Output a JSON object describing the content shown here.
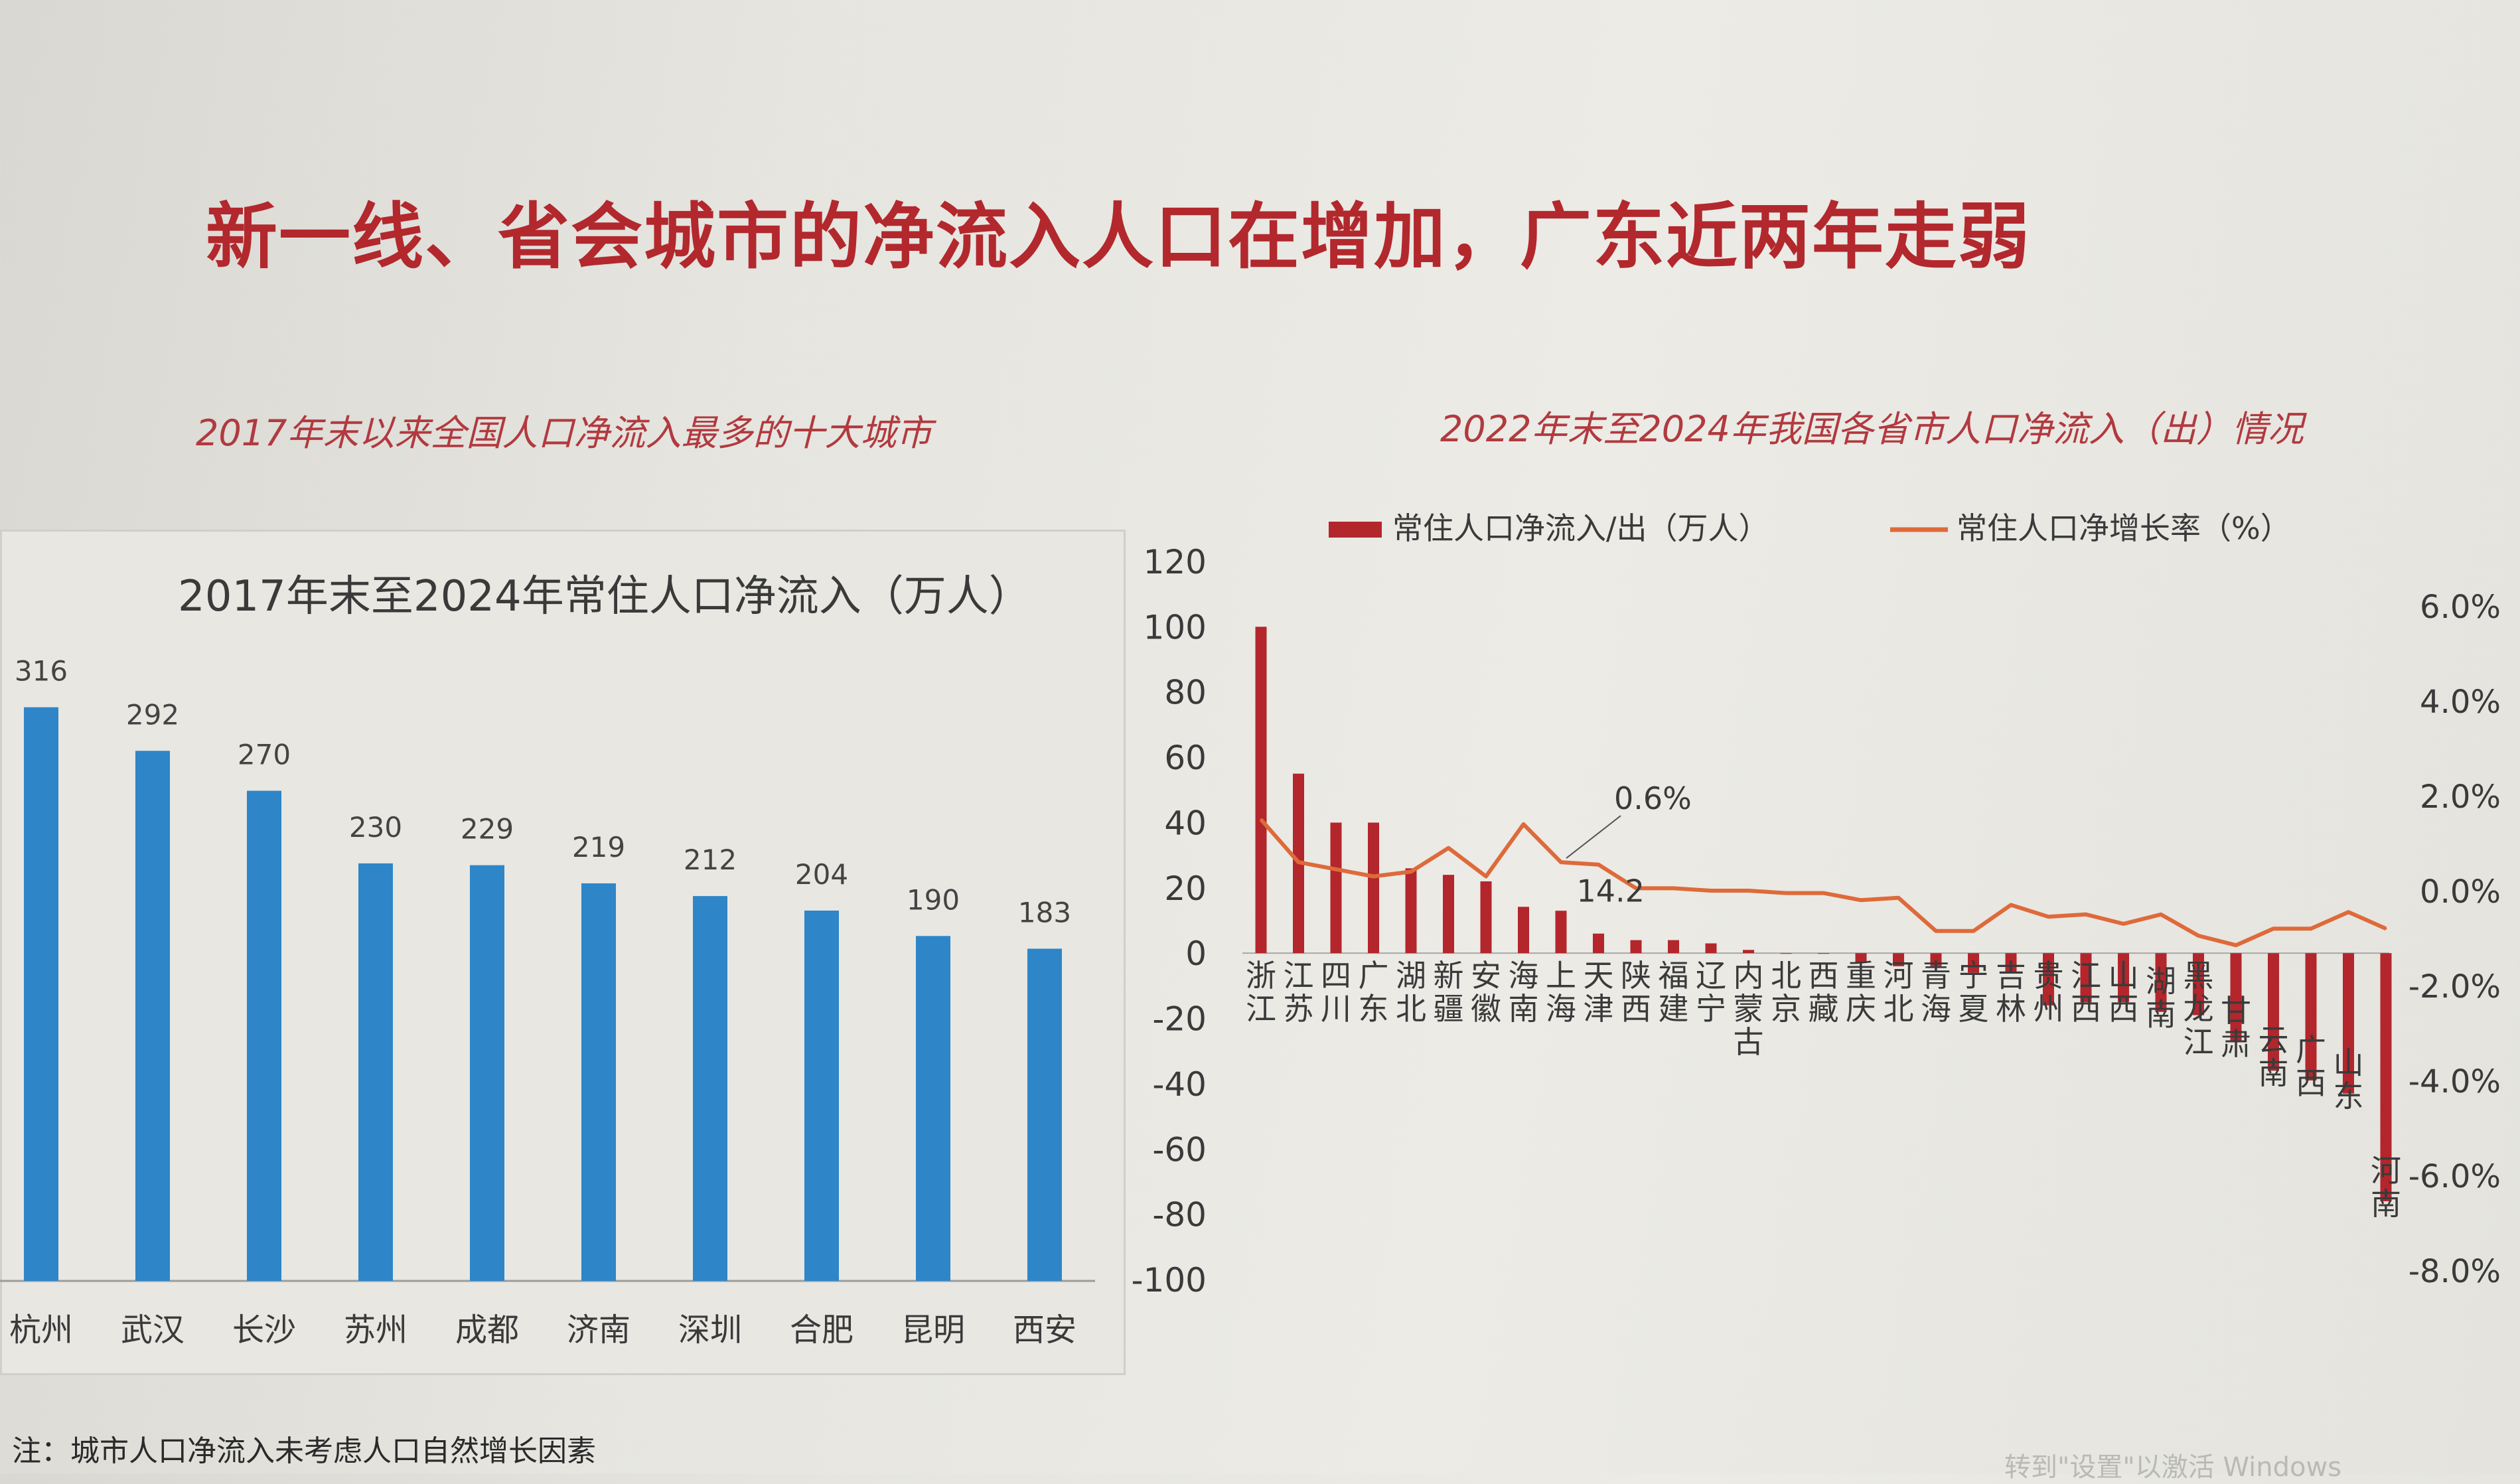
{
  "page": {
    "title": "新一线、省会城市的净流入人口在增加，广东近两年走弱",
    "left_subtitle": "2017年末以来全国人口净流入最多的十大城市",
    "right_subtitle": "2022年末至2024年我国各省市人口净流入（出）情况",
    "note": "注：城市人口净流入未考虑人口自然增长因素",
    "watermark": "转到\"设置\"以激活 Windows"
  },
  "colors": {
    "title_red": "#b2282d",
    "bar_blue": "#2e86c8",
    "bar_red": "#b3262c",
    "line_orange": "#de6a3a"
  },
  "chart_data": [
    {
      "type": "bar",
      "title": "2017年末至2024年常住人口净流入（万人）",
      "categories": [
        "杭州",
        "武汉",
        "长沙",
        "苏州",
        "成都",
        "济南",
        "深圳",
        "合肥",
        "昆明",
        "西安"
      ],
      "values": [
        316,
        292,
        270,
        230,
        229,
        219,
        212,
        204,
        190,
        183
      ],
      "data_labels": true,
      "xlabel": "",
      "ylabel": "",
      "ylim": [
        0,
        340
      ],
      "grid": false
    },
    {
      "type": "bar+line",
      "title": "",
      "categories": [
        "浙江",
        "江苏",
        "四川",
        "广东",
        "湖北",
        "新疆",
        "安徽",
        "海南",
        "上海",
        "天津",
        "陕西",
        "福建",
        "辽宁",
        "内蒙古",
        "北京",
        "西藏",
        "重庆",
        "河北",
        "青海",
        "宁夏",
        "吉林",
        "贵州",
        "江西",
        "山西",
        "湖南",
        "黑龙江",
        "甘肃",
        "云南",
        "广西",
        "山东",
        "河南"
      ],
      "category_labels": [
        "浙江",
        "江苏",
        "四川",
        "广东",
        "湖北",
        "新疆",
        "安徽",
        "海南",
        "上海",
        "天津",
        "陕西",
        "福建",
        "辽宁",
        "内蒙古",
        "北京",
        "西藏",
        "重庆",
        "河北",
        "青海",
        "宁夏",
        "吉林",
        "贵州",
        "江西",
        "山西",
        "湖南",
        "黑龙江",
        "甘肃",
        "云南",
        "广西",
        "山东",
        "河南"
      ],
      "series": [
        {
          "name": "常住人口净流入/出（万人）",
          "kind": "bar",
          "axis": "left",
          "values": [
            100,
            55,
            40,
            40,
            26,
            24,
            22,
            14.2,
            13,
            6,
            4,
            4,
            3,
            1,
            0,
            0,
            -3,
            -4,
            -4,
            -6,
            -6,
            -16,
            -15,
            -15,
            -18,
            -19,
            -27,
            -36,
            -39,
            -43,
            -76
          ]
        },
        {
          "name": "常住人口净增长率（%）",
          "kind": "line",
          "axis": "right",
          "values": [
            1.5,
            0.6,
            0.45,
            0.3,
            0.4,
            0.9,
            0.3,
            1.4,
            0.6,
            0.55,
            0.05,
            0.05,
            0.0,
            0.0,
            -0.05,
            -0.05,
            -0.2,
            -0.15,
            -0.85,
            -0.85,
            -0.3,
            -0.55,
            -0.5,
            -0.7,
            -0.5,
            -0.95,
            -1.15,
            -0.8,
            -0.8,
            -0.45,
            -0.8
          ]
        }
      ],
      "annotations": [
        {
          "text": "0.6%",
          "category": "上海",
          "series": "常住人口净增长率（%）"
        },
        {
          "text": "14.2",
          "category": "海南",
          "series": "常住人口净流入/出（万人）"
        }
      ],
      "ylim_left": [
        -100,
        120
      ],
      "yticks_left": [
        "120",
        "100",
        "80",
        "60",
        "40",
        "20",
        "0",
        "-20",
        "-40",
        "-60",
        "-80",
        "-100"
      ],
      "ylim_right": [
        -8.0,
        6.0
      ],
      "yticks_right": [
        "6.0%",
        "4.0%",
        "2.0%",
        "0.0%",
        "-2.0%",
        "-4.0%",
        "-6.0%",
        "-8.0%"
      ],
      "legend_position": "top",
      "grid": false
    }
  ]
}
